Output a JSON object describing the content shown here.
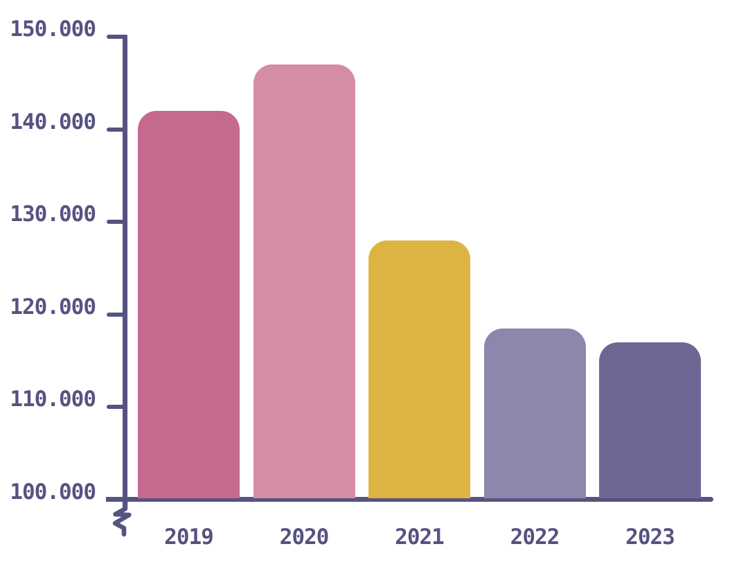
{
  "chart_data": {
    "type": "bar",
    "title": "",
    "xlabel": "",
    "ylabel": "",
    "categories": [
      "2019",
      "2020",
      "2021",
      "2022",
      "2023"
    ],
    "values": [
      142000,
      147000,
      128000,
      118500,
      117000
    ],
    "bar_colors": [
      "#c56a8e",
      "#d48da7",
      "#ddb444",
      "#8d87ad",
      "#6d6795"
    ],
    "ylim": [
      100000,
      150000
    ],
    "y_ticks": [
      {
        "value": 150000,
        "label": "150.000"
      },
      {
        "value": 140000,
        "label": "140.000"
      },
      {
        "value": 130000,
        "label": "130.000"
      },
      {
        "value": 120000,
        "label": "120.000"
      },
      {
        "value": 110000,
        "label": "110.000"
      },
      {
        "value": 100000,
        "label": "100.000"
      }
    ],
    "axis_break": true,
    "grid": false,
    "legend": "none",
    "axis_color": "#565381",
    "label_color": "#565381"
  }
}
